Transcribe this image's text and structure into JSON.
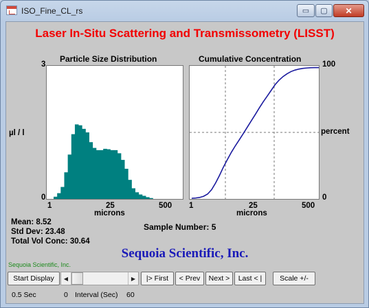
{
  "window": {
    "title": "ISO_Fine_CL_rs",
    "minimize_glyph": "▭",
    "maximize_glyph": "▢",
    "close_glyph": "✕"
  },
  "app": {
    "headline": "Laser In-Situ Scattering and Transmissometry (LISST)",
    "company": "Sequoia Scientific, Inc.",
    "company_small": "Sequoia Scientific, Inc."
  },
  "stats": {
    "mean": "Mean: 8.52",
    "std_dev": "Std Dev: 23.48",
    "total_vol": "Total Vol Conc: 30.64",
    "sample_number": "Sample Number: 5"
  },
  "toolbar": {
    "start_display": "Start Display",
    "first": "|> First",
    "prev": "< Prev",
    "next": "Next >",
    "last": "Last < |",
    "scale": "Scale +/-"
  },
  "status": {
    "speed": "0.5 Sec",
    "interval_value": "0",
    "interval_label": "Interval (Sec)",
    "interval_max": "60"
  },
  "colors": {
    "headline": "#f20000",
    "histogram_fill": "#008080",
    "cumulative_line": "#1a1a9e",
    "company": "#1a1ab8"
  },
  "chart_data": [
    {
      "type": "bar",
      "title": "Particle Size Distribution",
      "xlabel": "microns",
      "ylabel": "µl / l",
      "x_ticks": [
        "1",
        "25",
        "500"
      ],
      "y_ticks": [
        "3",
        "0"
      ],
      "ylim": [
        0,
        3
      ],
      "x_scale": "log",
      "values": [
        0.05,
        0.13,
        0.27,
        0.6,
        1.0,
        1.46,
        1.68,
        1.66,
        1.58,
        1.5,
        1.28,
        1.15,
        1.1,
        1.1,
        1.13,
        1.12,
        1.1,
        1.1,
        1.03,
        0.88,
        0.68,
        0.43,
        0.24,
        0.15,
        0.1,
        0.07,
        0.04,
        0.02,
        0.0,
        0.0,
        0.0,
        0.0
      ]
    },
    {
      "type": "line",
      "title": "Cumulative Concentration",
      "xlabel": "microns",
      "ylabel": "percent",
      "x_ticks": [
        "1",
        "25",
        "500"
      ],
      "y_ticks": [
        "100",
        "0"
      ],
      "ylim": [
        0,
        100
      ],
      "x_scale": "log",
      "grid": true,
      "values": [
        0,
        0.2,
        0.6,
        1.5,
        3.2,
        6.5,
        11.5,
        17.4,
        23.8,
        29.5,
        35.0,
        39.9,
        44.5,
        49.2,
        54.0,
        58.8,
        63.6,
        68.5,
        73.2,
        77.5,
        81.9,
        86.3,
        89.7,
        92.4,
        94.5,
        96.2,
        97.3,
        98.1,
        98.6,
        98.9,
        99.1,
        99.2,
        99.2
      ]
    }
  ]
}
